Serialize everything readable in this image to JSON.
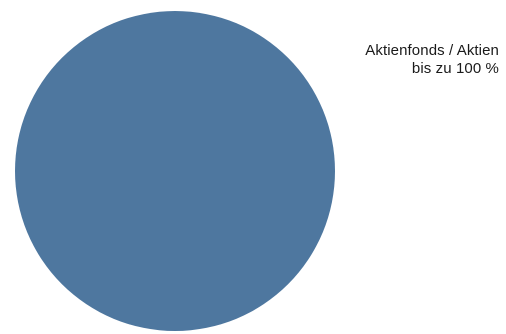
{
  "chart_data": {
    "type": "pie",
    "slices": [
      {
        "label": "Aktienfonds / Aktien",
        "value": 100,
        "value_label": "bis zu 100 %",
        "color": "#4e779f"
      }
    ],
    "title": "",
    "legend_placement": "right-of-pie"
  },
  "labels": {
    "slice_0_line1": "Aktienfonds / Aktien",
    "slice_0_line2": "bis zu 100 %"
  }
}
